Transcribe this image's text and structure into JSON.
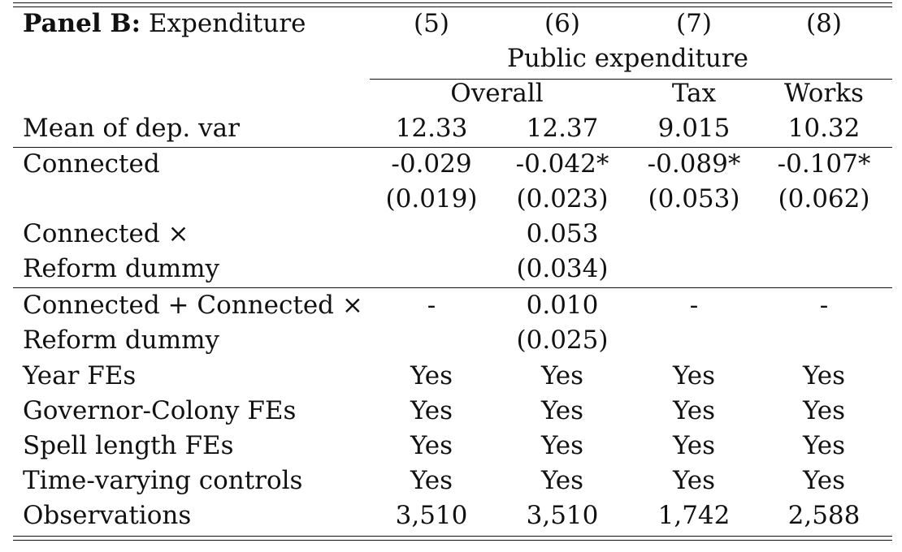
{
  "panel": {
    "bold_label": "Panel B:",
    "title": "Expenditure"
  },
  "columns": [
    "(5)",
    "(6)",
    "(7)",
    "(8)"
  ],
  "header": {
    "group": "Public expenditure",
    "subgroups": [
      "Overall",
      "Tax",
      "Works"
    ]
  },
  "mean_row": {
    "label": "Mean of dep. var",
    "values": [
      "12.33",
      "12.37",
      "9.015",
      "10.32"
    ]
  },
  "rows": {
    "connected": {
      "label": "Connected",
      "coef": [
        "-0.029",
        "-0.042*",
        "-0.089*",
        "-0.107*"
      ],
      "se": [
        "(0.019)",
        "(0.023)",
        "(0.053)",
        "(0.062)"
      ]
    },
    "interaction": {
      "label1": "Connected ×",
      "label2": "Reform dummy",
      "coef": [
        "",
        "0.053",
        "",
        ""
      ],
      "se": [
        "",
        "(0.034)",
        "",
        ""
      ]
    },
    "sum": {
      "label1": "Connected + Connected ×",
      "label2": "Reform dummy",
      "coef": [
        "-",
        "0.010",
        "-",
        "-"
      ],
      "se": [
        "",
        "(0.025)",
        "",
        ""
      ]
    }
  },
  "controls": [
    {
      "label": "Year FEs",
      "values": [
        "Yes",
        "Yes",
        "Yes",
        "Yes"
      ]
    },
    {
      "label": "Governor-Colony FEs",
      "values": [
        "Yes",
        "Yes",
        "Yes",
        "Yes"
      ]
    },
    {
      "label": "Spell length FEs",
      "values": [
        "Yes",
        "Yes",
        "Yes",
        "Yes"
      ]
    },
    {
      "label": "Time-varying controls",
      "values": [
        "Yes",
        "Yes",
        "Yes",
        "Yes"
      ]
    }
  ],
  "observations": {
    "label": "Observations",
    "values": [
      "3,510",
      "3,510",
      "1,742",
      "2,588"
    ]
  }
}
